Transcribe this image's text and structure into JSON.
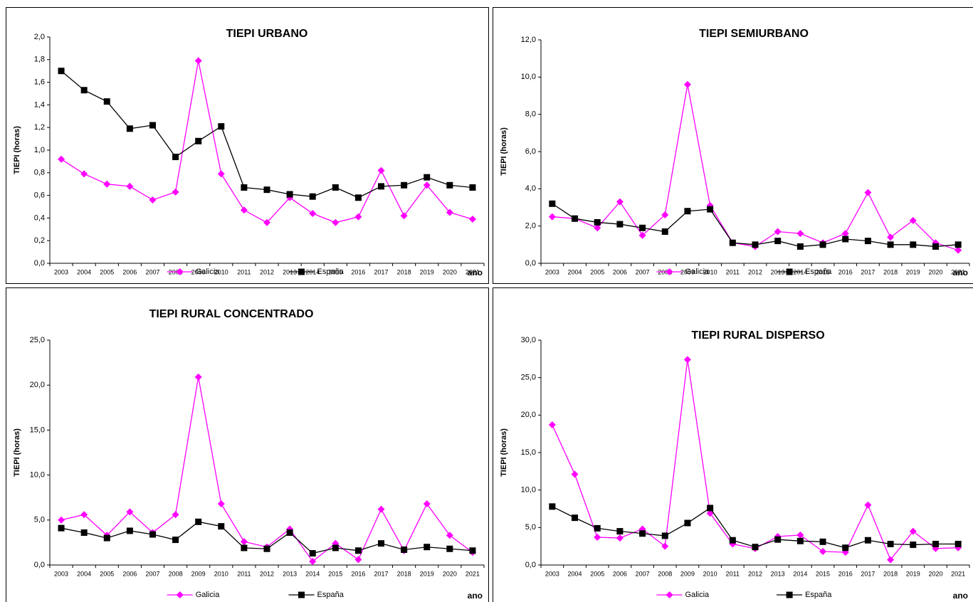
{
  "chart_data": [
    {
      "type": "line",
      "title": "TIEPI URBANO",
      "y_label": "TIEPI (horas)",
      "x_label": "ano",
      "legend": "bottom",
      "grid": false,
      "categories": [
        "2003",
        "2004",
        "2005",
        "2006",
        "2007",
        "2008",
        "2009",
        "2010",
        "2011",
        "2012",
        "2013",
        "2014",
        "2015",
        "2016",
        "2017",
        "2018",
        "2019",
        "2020",
        "2021"
      ],
      "ylim": [
        0,
        2
      ],
      "yticks": [
        {
          "value": 0,
          "label": "0,0"
        },
        {
          "value": 0.2,
          "label": "0,2"
        },
        {
          "value": 0.4,
          "label": "0,4"
        },
        {
          "value": 0.6,
          "label": "0,6"
        },
        {
          "value": 0.8,
          "label": "0,8"
        },
        {
          "value": 1,
          "label": "1,0"
        },
        {
          "value": 1.2,
          "label": "1,2"
        },
        {
          "value": 1.4,
          "label": "1,4"
        },
        {
          "value": 1.6,
          "label": "1,6"
        },
        {
          "value": 1.8,
          "label": "1,8"
        },
        {
          "value": 2,
          "label": "2,0"
        }
      ],
      "series": [
        {
          "name": "Galicia",
          "color": "#ff00ff",
          "marker": "diamond",
          "values": [
            0.92,
            0.79,
            0.7,
            0.68,
            0.56,
            0.63,
            1.79,
            0.79,
            0.47,
            0.36,
            0.58,
            0.44,
            0.36,
            0.41,
            0.82,
            0.42,
            0.69,
            0.45,
            0.39
          ]
        },
        {
          "name": "España",
          "color": "#000000",
          "marker": "square",
          "values": [
            1.7,
            1.53,
            1.43,
            1.19,
            1.22,
            0.94,
            1.08,
            1.21,
            0.67,
            0.65,
            0.61,
            0.59,
            0.67,
            0.58,
            0.68,
            0.69,
            0.76,
            0.69,
            0.67
          ]
        }
      ]
    },
    {
      "type": "line",
      "title": "TIEPI SEMIURBANO",
      "y_label": "TIEPI (horas)",
      "x_label": "ano",
      "legend": "bottom",
      "grid": false,
      "categories": [
        "2003",
        "2004",
        "2005",
        "2006",
        "2007",
        "2008",
        "2009",
        "2010",
        "2011",
        "2012",
        "2013",
        "2014",
        "2015",
        "2016",
        "2017",
        "2018",
        "2019",
        "2020",
        "2021"
      ],
      "ylim": [
        0,
        12
      ],
      "yticks": [
        {
          "value": 0,
          "label": "0,0"
        },
        {
          "value": 2,
          "label": "2,0"
        },
        {
          "value": 4,
          "label": "4,0"
        },
        {
          "value": 6,
          "label": "6,0"
        },
        {
          "value": 8,
          "label": "8,0"
        },
        {
          "value": 10,
          "label": "10,0"
        },
        {
          "value": 12,
          "label": "12,0"
        }
      ],
      "series": [
        {
          "name": "Galicia",
          "color": "#ff00ff",
          "marker": "diamond",
          "values": [
            2.5,
            2.4,
            1.9,
            3.3,
            1.5,
            2.6,
            9.6,
            3.1,
            1.1,
            0.9,
            1.7,
            1.6,
            1.1,
            1.6,
            3.8,
            1.4,
            2.3,
            1.1,
            0.7
          ]
        },
        {
          "name": "España",
          "color": "#000000",
          "marker": "square",
          "values": [
            3.2,
            2.4,
            2.2,
            2.1,
            1.9,
            1.7,
            2.8,
            2.9,
            1.1,
            1.0,
            1.2,
            0.9,
            1.0,
            1.3,
            1.2,
            1.0,
            1.0,
            0.9,
            1.0
          ]
        }
      ]
    },
    {
      "type": "line",
      "title": "TIEPI RURAL CONCENTRADO",
      "y_label": "TIEPI (horas)",
      "x_label": "ano",
      "legend": "bottom",
      "grid": false,
      "categories": [
        "2003",
        "2004",
        "2005",
        "2006",
        "2007",
        "2008",
        "2009",
        "2010",
        "2011",
        "2012",
        "2013",
        "2014",
        "2015",
        "2016",
        "2017",
        "2018",
        "2019",
        "2020",
        "2021"
      ],
      "ylim": [
        0,
        25
      ],
      "yticks": [
        {
          "value": 0,
          "label": "0,0"
        },
        {
          "value": 5,
          "label": "5,0"
        },
        {
          "value": 10,
          "label": "10,0"
        },
        {
          "value": 15,
          "label": "15,0"
        },
        {
          "value": 20,
          "label": "20,0"
        },
        {
          "value": 25,
          "label": "25,0"
        }
      ],
      "series": [
        {
          "name": "Galicia",
          "color": "#ff00ff",
          "marker": "diamond",
          "values": [
            5.0,
            5.6,
            3.3,
            5.9,
            3.6,
            5.6,
            20.9,
            6.8,
            2.6,
            2.0,
            4.0,
            0.4,
            2.4,
            0.6,
            6.2,
            1.6,
            6.8,
            3.3,
            1.4
          ]
        },
        {
          "name": "España",
          "color": "#000000",
          "marker": "square",
          "values": [
            4.1,
            3.6,
            3.0,
            3.8,
            3.4,
            2.8,
            4.8,
            4.3,
            1.9,
            1.8,
            3.6,
            1.3,
            1.9,
            1.6,
            2.4,
            1.7,
            2.0,
            1.8,
            1.6
          ]
        }
      ]
    },
    {
      "type": "line",
      "title": "TIEPI RURAL DISPERSO",
      "y_label": "TIEPI (horas)",
      "x_label": "ano",
      "legend": "bottom",
      "grid": false,
      "categories": [
        "2003",
        "2004",
        "2005",
        "2006",
        "2007",
        "2008",
        "2009",
        "2010",
        "2011",
        "2012",
        "2013",
        "2014",
        "2015",
        "2016",
        "2017",
        "2018",
        "2019",
        "2020",
        "2021"
      ],
      "ylim": [
        0,
        30
      ],
      "yticks": [
        {
          "value": 0,
          "label": "0,0"
        },
        {
          "value": 5,
          "label": "5,0"
        },
        {
          "value": 10,
          "label": "10,0"
        },
        {
          "value": 15,
          "label": "15,0"
        },
        {
          "value": 20,
          "label": "20,0"
        },
        {
          "value": 25,
          "label": "25,0"
        },
        {
          "value": 30,
          "label": "30,0"
        }
      ],
      "series": [
        {
          "name": "Galicia",
          "color": "#ff00ff",
          "marker": "diamond",
          "values": [
            18.7,
            12.1,
            3.7,
            3.6,
            4.8,
            2.5,
            27.4,
            6.9,
            2.8,
            2.2,
            3.8,
            4.0,
            1.8,
            1.7,
            8.0,
            0.7,
            4.5,
            2.2,
            2.3
          ]
        },
        {
          "name": "España",
          "color": "#000000",
          "marker": "square",
          "values": [
            7.8,
            6.3,
            4.9,
            4.5,
            4.2,
            3.9,
            5.6,
            7.6,
            3.3,
            2.4,
            3.4,
            3.2,
            3.1,
            2.3,
            3.3,
            2.8,
            2.7,
            2.8,
            2.8
          ]
        }
      ]
    }
  ]
}
